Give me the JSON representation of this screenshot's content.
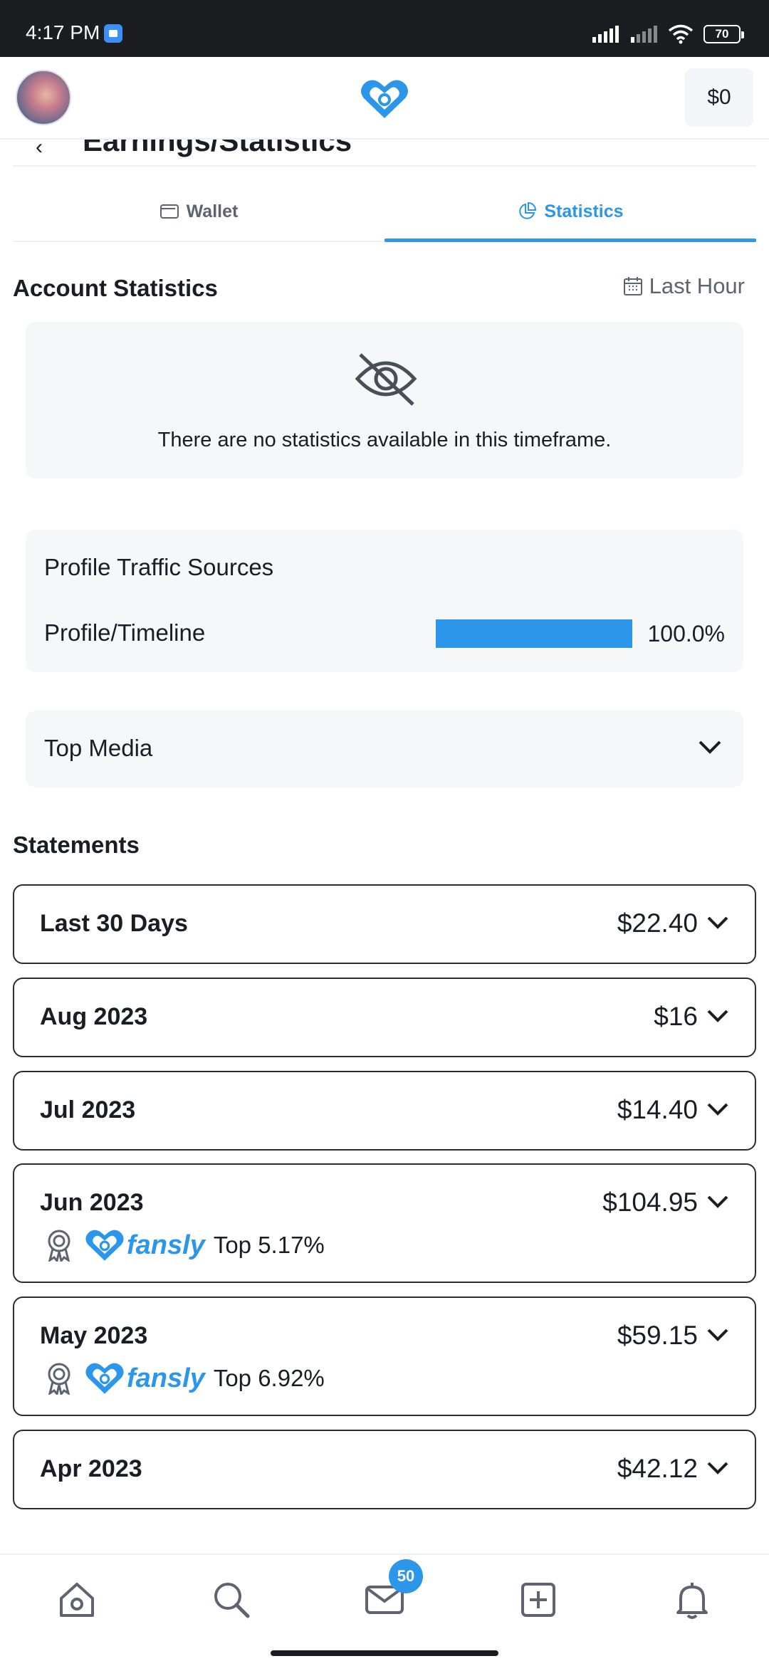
{
  "status_bar": {
    "time": "4:17 PM",
    "battery": "70"
  },
  "header": {
    "balance": "$0",
    "page_title": "Earnings/Statistics"
  },
  "tabs": [
    {
      "label": "Wallet",
      "active": false,
      "icon": "wallet-icon"
    },
    {
      "label": "Statistics",
      "active": true,
      "icon": "pie-chart-icon"
    }
  ],
  "account_statistics": {
    "title": "Account Statistics",
    "range": "Last Hour",
    "empty_message": "There are no statistics available in this timeframe."
  },
  "traffic_sources": {
    "title": "Profile Traffic Sources",
    "items": [
      {
        "label": "Profile/Timeline",
        "percent": "100.0%",
        "fraction": 1.0
      }
    ]
  },
  "top_media": {
    "title": "Top Media"
  },
  "statements": {
    "title": "Statements",
    "items": [
      {
        "label": "Last 30 Days",
        "amount": "$22.40"
      },
      {
        "label": "Aug 2023",
        "amount": "$16"
      },
      {
        "label": "Jul 2023",
        "amount": "$14.40"
      },
      {
        "label": "Jun 2023",
        "amount": "$104.95",
        "brand": "fansly",
        "top": "Top 5.17%"
      },
      {
        "label": "May 2023",
        "amount": "$59.15",
        "brand": "fansly",
        "top": "Top 6.92%"
      },
      {
        "label": "Apr 2023",
        "amount": "$42.12"
      }
    ]
  },
  "bottom_nav": {
    "messages_badge": "50"
  },
  "colors": {
    "accent": "#2b96ea",
    "text": "#1a1d23",
    "muted": "#5d6470",
    "card": "#f6f7f9"
  }
}
